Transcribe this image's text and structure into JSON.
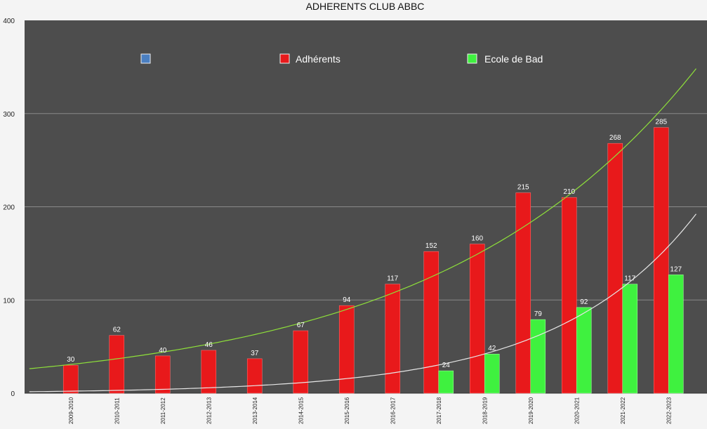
{
  "chart_data": {
    "type": "bar",
    "title": "ADHERENTS CLUB ABBC",
    "categories": [
      "2009-2010",
      "2010-2011",
      "2011-2012",
      "2012-2013",
      "2013-2014",
      "2014-2015",
      "2015-2016",
      "2016-2017",
      "2017-2018",
      "2018-2019",
      "2019-2020",
      "2020-2021",
      "2021-2022",
      "2022-2023"
    ],
    "series": [
      {
        "name": "",
        "color": "#4a7fc1",
        "values": [
          null,
          null,
          null,
          null,
          null,
          null,
          null,
          null,
          null,
          null,
          null,
          null,
          null,
          null
        ]
      },
      {
        "name": "Adhérents",
        "color": "#e8191b",
        "values": [
          30,
          62,
          40,
          46,
          37,
          67,
          94,
          117,
          152,
          160,
          215,
          210,
          268,
          285
        ]
      },
      {
        "name": "Ecole de Bad",
        "color": "#3ff13f",
        "values": [
          null,
          null,
          null,
          null,
          null,
          null,
          null,
          null,
          24,
          42,
          79,
          92,
          117,
          127
        ]
      }
    ],
    "trendlines": [
      {
        "series": "Adhérents",
        "type": "exponential",
        "color": "#8ee03a"
      },
      {
        "series": "Ecole de Bad",
        "type": "exponential",
        "color": "#e6e6e6"
      }
    ],
    "ylim": [
      0,
      400
    ],
    "yticks": [
      0,
      100,
      200,
      300,
      400
    ],
    "xlabel": "",
    "ylabel": "",
    "grid": true,
    "legend": "top",
    "plot_background": "#4d4d4d"
  }
}
